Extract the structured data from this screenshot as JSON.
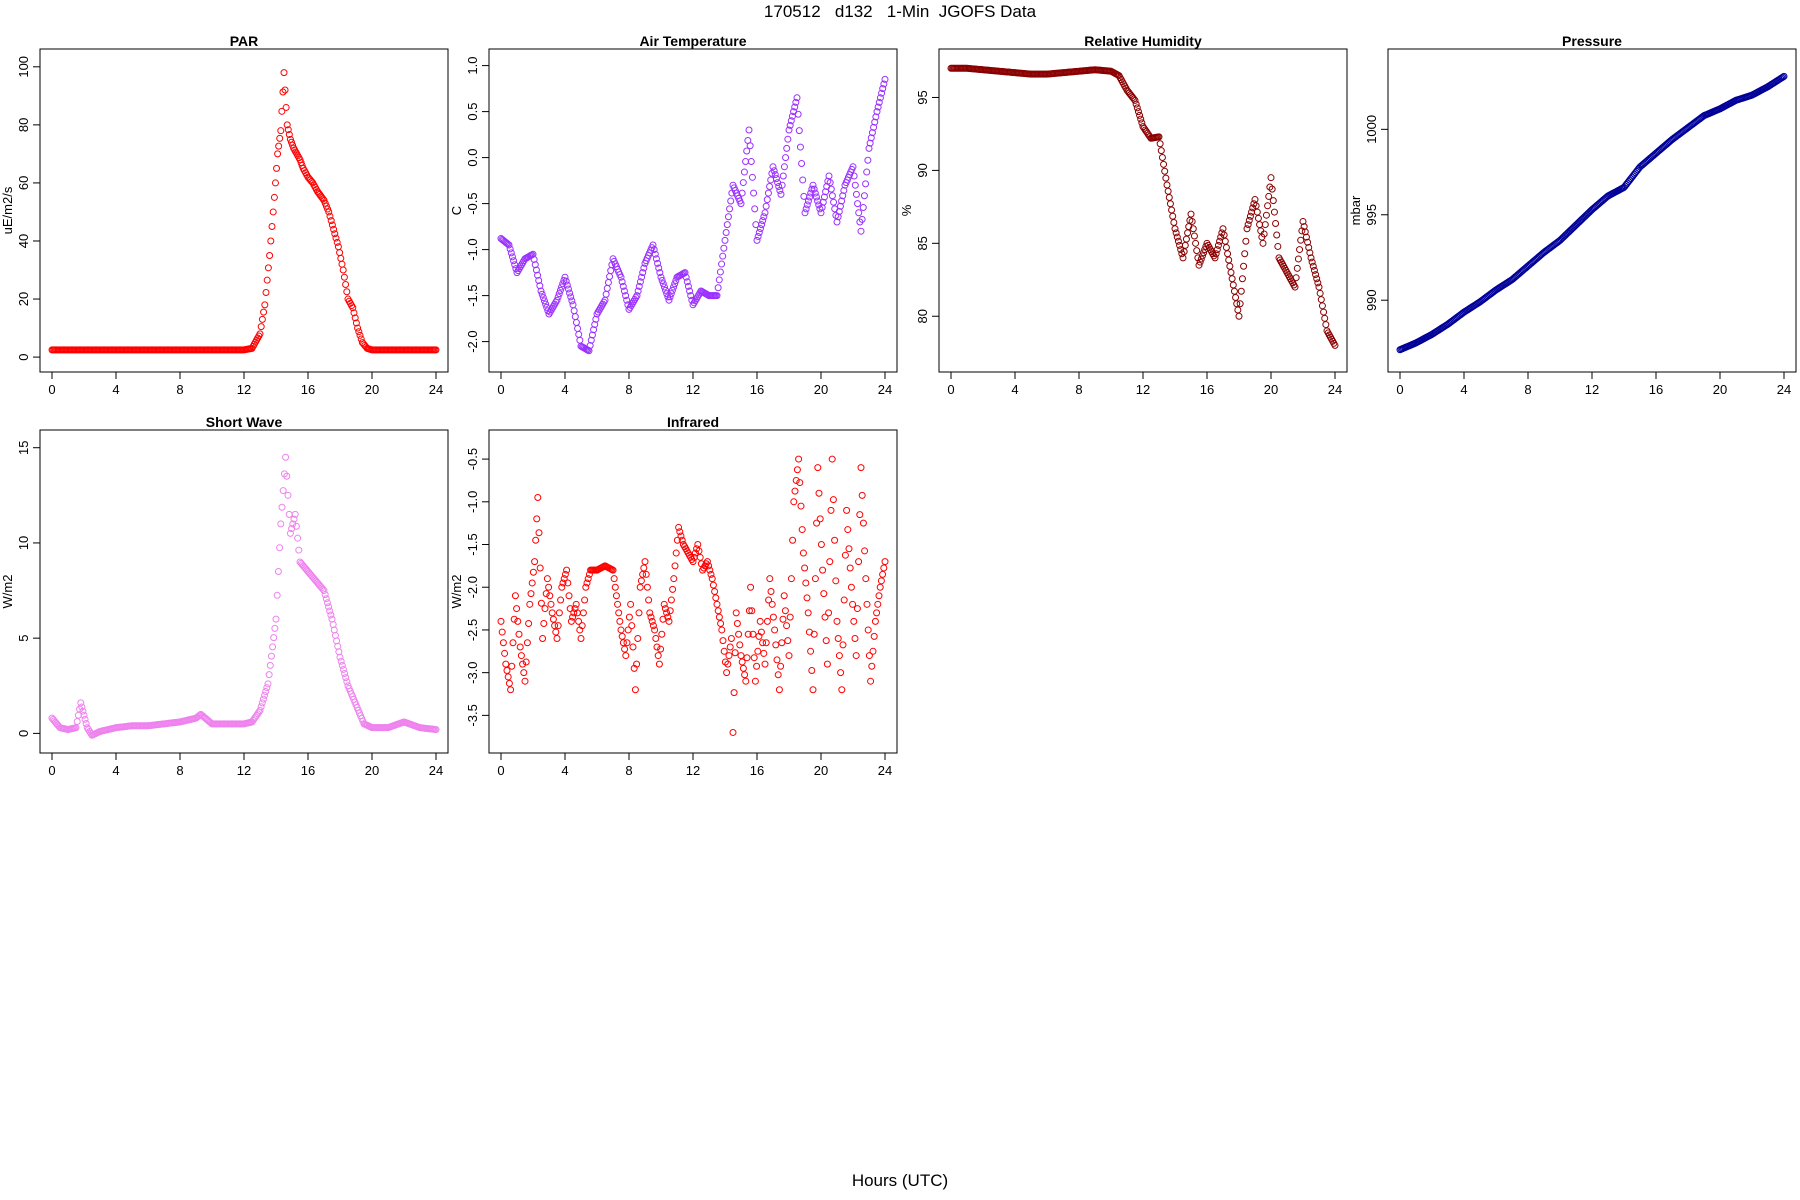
{
  "title": "170512   d132   1-Min  JGOFS Data",
  "common_xlabel": "Hours (UTC)",
  "chart_data": [
    {
      "type": "scatter",
      "title": "PAR",
      "ylabel": "uE/m2/s",
      "xlabel": "",
      "color": "#ff0000",
      "xlim": [
        0,
        24
      ],
      "ylim": [
        -1,
        102
      ],
      "xticks": [
        0,
        4,
        8,
        12,
        16,
        20,
        24
      ],
      "yticks": [
        0,
        20,
        40,
        60,
        80,
        100
      ],
      "x": [
        0,
        2,
        4,
        6,
        8,
        10,
        12,
        12.5,
        13,
        13.3,
        13.6,
        13.9,
        14.1,
        14.3,
        14.5,
        14.7,
        14.9,
        15.1,
        15.3,
        15.5,
        15.7,
        16,
        16.3,
        16.6,
        17,
        17.3,
        17.6,
        17.9,
        18.2,
        18.5,
        18.8,
        19.1,
        19.4,
        19.7,
        20,
        20.5,
        21,
        22,
        23,
        24
      ],
      "y": [
        2.5,
        2.5,
        2.5,
        2.5,
        2.5,
        2.5,
        2.5,
        3,
        8,
        18,
        35,
        55,
        70,
        78,
        98,
        80,
        75,
        72,
        70,
        68,
        65,
        62,
        60,
        57,
        54,
        50,
        44,
        38,
        30,
        20,
        17,
        10,
        5,
        3,
        2.5,
        2.5,
        2.5,
        2.5,
        2.5,
        2.5
      ]
    },
    {
      "type": "scatter",
      "title": "Air Temperature",
      "ylabel": "C",
      "xlabel": "",
      "color": "#9b30ff",
      "xlim": [
        0,
        24
      ],
      "ylim": [
        -2.2,
        1.05
      ],
      "xticks": [
        0,
        4,
        8,
        12,
        16,
        20,
        24
      ],
      "yticks": [
        -2.0,
        -1.5,
        -1.0,
        -0.5,
        0.0,
        0.5,
        1.0
      ],
      "ytick_labels": [
        "-2.0",
        "-1.5",
        "-1.0",
        "-0.5",
        "0.0",
        "0.5",
        "1.0"
      ],
      "x": [
        0,
        0.5,
        1,
        1.5,
        2,
        2.5,
        3,
        3.5,
        4,
        4.5,
        5,
        5.5,
        6,
        6.5,
        7,
        7.5,
        8,
        8.5,
        9,
        9.5,
        10,
        10.5,
        11,
        11.5,
        12,
        12.5,
        13,
        13.5,
        14,
        14.5,
        15,
        15.5,
        16,
        16.5,
        17,
        17.5,
        18,
        18.5,
        19,
        19.5,
        20,
        20.5,
        21,
        21.5,
        22,
        22.5,
        23,
        23.5,
        24
      ],
      "y": [
        -0.88,
        -0.95,
        -1.25,
        -1.1,
        -1.05,
        -1.45,
        -1.7,
        -1.55,
        -1.3,
        -1.6,
        -2.05,
        -2.1,
        -1.7,
        -1.55,
        -1.1,
        -1.3,
        -1.65,
        -1.5,
        -1.15,
        -0.95,
        -1.3,
        -1.55,
        -1.3,
        -1.25,
        -1.6,
        -1.45,
        -1.5,
        -1.5,
        -0.9,
        -0.3,
        -0.5,
        0.3,
        -0.9,
        -0.6,
        -0.1,
        -0.4,
        0.3,
        0.65,
        -0.6,
        -0.3,
        -0.6,
        -0.2,
        -0.7,
        -0.3,
        -0.1,
        -0.8,
        0.1,
        0.5,
        0.85
      ]
    },
    {
      "type": "scatter",
      "title": "Relative Humidity",
      "ylabel": "%",
      "xlabel": "",
      "color": "#8b0000",
      "xlim": [
        0,
        24
      ],
      "ylim": [
        77,
        97.5
      ],
      "xticks": [
        0,
        4,
        8,
        12,
        16,
        20,
        24
      ],
      "yticks": [
        80,
        85,
        90,
        95
      ],
      "x": [
        0,
        1,
        2,
        3,
        4,
        5,
        6,
        7,
        8,
        9,
        10,
        10.5,
        11,
        11.5,
        12,
        12.5,
        13,
        13.5,
        14,
        14.5,
        15,
        15.5,
        16,
        16.5,
        17,
        17.5,
        18,
        18.5,
        19,
        19.5,
        20,
        20.5,
        21,
        21.5,
        22,
        22.5,
        23,
        23.5,
        24
      ],
      "y": [
        97,
        97,
        96.9,
        96.8,
        96.7,
        96.6,
        96.6,
        96.7,
        96.8,
        96.9,
        96.8,
        96.5,
        95.5,
        94.8,
        93,
        92.2,
        92.3,
        89,
        86,
        84,
        87,
        83.5,
        85,
        84,
        86,
        83,
        80,
        86,
        88,
        85,
        89.5,
        84,
        83,
        82,
        86.5,
        84,
        82,
        79,
        78
      ]
    },
    {
      "type": "scatter",
      "title": "Pressure",
      "ylabel": "mbar",
      "xlabel": "",
      "color": "#000099",
      "xlim": [
        0,
        24
      ],
      "ylim": [
        986.5,
        1004
      ],
      "xticks": [
        0,
        4,
        8,
        12,
        16,
        20,
        24
      ],
      "yticks": [
        990,
        995,
        1000
      ],
      "x": [
        0,
        1,
        2,
        3,
        4,
        5,
        6,
        7,
        8,
        9,
        10,
        11,
        12,
        13,
        14,
        15,
        16,
        17,
        18,
        19,
        20,
        21,
        22,
        23,
        24
      ],
      "y": [
        987.1,
        987.5,
        988,
        988.6,
        989.3,
        989.9,
        990.6,
        991.2,
        992,
        992.8,
        993.5,
        994.4,
        995.3,
        996.1,
        996.6,
        997.8,
        998.6,
        999.4,
        1000.1,
        1000.8,
        1001.2,
        1001.7,
        1002,
        1002.5,
        1003.1
      ]
    },
    {
      "type": "scatter",
      "title": "Short Wave",
      "ylabel": "W/m2",
      "xlabel": "",
      "color": "#ee82ee",
      "xlim": [
        0,
        24
      ],
      "ylim": [
        -0.4,
        15.3
      ],
      "xticks": [
        0,
        4,
        8,
        12,
        16,
        20,
        24
      ],
      "yticks": [
        0,
        5,
        10,
        15
      ],
      "x": [
        0,
        0.5,
        1,
        1.5,
        1.8,
        2.2,
        2.5,
        3,
        4,
        5,
        6,
        7,
        8,
        9,
        9.3,
        10,
        11,
        12,
        12.5,
        13,
        13.5,
        14,
        14.3,
        14.6,
        14.9,
        15.2,
        15.5,
        16,
        16.5,
        17,
        17.5,
        18,
        18.5,
        19,
        19.5,
        20,
        21,
        22,
        23,
        24
      ],
      "y": [
        0.8,
        0.3,
        0.2,
        0.3,
        1.6,
        0.3,
        -0.1,
        0.1,
        0.3,
        0.4,
        0.4,
        0.5,
        0.6,
        0.8,
        1.0,
        0.5,
        0.5,
        0.5,
        0.6,
        1.2,
        2.6,
        6,
        11,
        14.5,
        10.5,
        11.5,
        9,
        8.5,
        8,
        7.5,
        6,
        4,
        2.5,
        1.5,
        0.5,
        0.3,
        0.3,
        0.6,
        0.3,
        0.2
      ]
    },
    {
      "type": "scatter",
      "title": "Infrared",
      "ylabel": "W/m2",
      "xlabel": "",
      "color": "#ff0000",
      "xlim": [
        0,
        24
      ],
      "ylim": [
        -3.8,
        -0.3
      ],
      "xticks": [
        0,
        4,
        8,
        12,
        16,
        20,
        24
      ],
      "yticks": [
        -3.5,
        -3.0,
        -2.5,
        -2.0,
        -1.5,
        -1.0,
        -0.5
      ],
      "ytick_labels": [
        "-3.5",
        "-3.0",
        "-2.5",
        "-2.0",
        "-1.5",
        "-1.0",
        "-0.5"
      ],
      "x": [
        0,
        0.3,
        0.6,
        0.9,
        1.2,
        1.5,
        1.8,
        2.1,
        2.3,
        2.6,
        2.9,
        3.2,
        3.5,
        3.8,
        4.1,
        4.4,
        4.7,
        5,
        5.3,
        5.6,
        6,
        6.5,
        7,
        7.5,
        7.8,
        8.1,
        8.4,
        8.7,
        9,
        9.3,
        9.6,
        9.9,
        10.2,
        10.5,
        10.8,
        11.1,
        11.4,
        11.7,
        12,
        12.3,
        12.6,
        12.9,
        13.2,
        13.5,
        13.8,
        14.1,
        14.4,
        14.5,
        14.7,
        15,
        15.3,
        15.6,
        15.9,
        16.2,
        16.5,
        16.8,
        17.1,
        17.4,
        17.7,
        18,
        18.3,
        18.6,
        18.9,
        19.2,
        19.5,
        19.8,
        20.1,
        20.4,
        20.7,
        21,
        21.3,
        21.6,
        21.9,
        22.2,
        22.5,
        22.8,
        23.1,
        23.4,
        23.7,
        24
      ],
      "y": [
        -2.4,
        -2.9,
        -3.2,
        -2.1,
        -2.7,
        -3.1,
        -2.2,
        -1.7,
        -0.95,
        -2.6,
        -1.9,
        -2.3,
        -2.6,
        -2.0,
        -1.8,
        -2.4,
        -2.2,
        -2.6,
        -2.0,
        -1.8,
        -1.8,
        -1.75,
        -1.8,
        -2.5,
        -2.8,
        -2.2,
        -3.2,
        -2.0,
        -1.7,
        -2.3,
        -2.5,
        -2.9,
        -2.2,
        -2.4,
        -1.9,
        -1.3,
        -1.5,
        -1.6,
        -1.7,
        -1.5,
        -1.8,
        -1.7,
        -1.9,
        -2.2,
        -2.5,
        -3.0,
        -2.6,
        -3.7,
        -2.3,
        -2.8,
        -3.1,
        -2.0,
        -3.1,
        -2.4,
        -2.9,
        -1.9,
        -2.5,
        -3.2,
        -2.1,
        -2.8,
        -1.0,
        -0.5,
        -1.6,
        -2.3,
        -3.2,
        -0.6,
        -1.8,
        -2.9,
        -0.5,
        -2.4,
        -3.2,
        -1.1,
        -2.0,
        -2.8,
        -0.6,
        -1.9,
        -3.1,
        -2.4,
        -2.0,
        -1.7
      ]
    }
  ]
}
